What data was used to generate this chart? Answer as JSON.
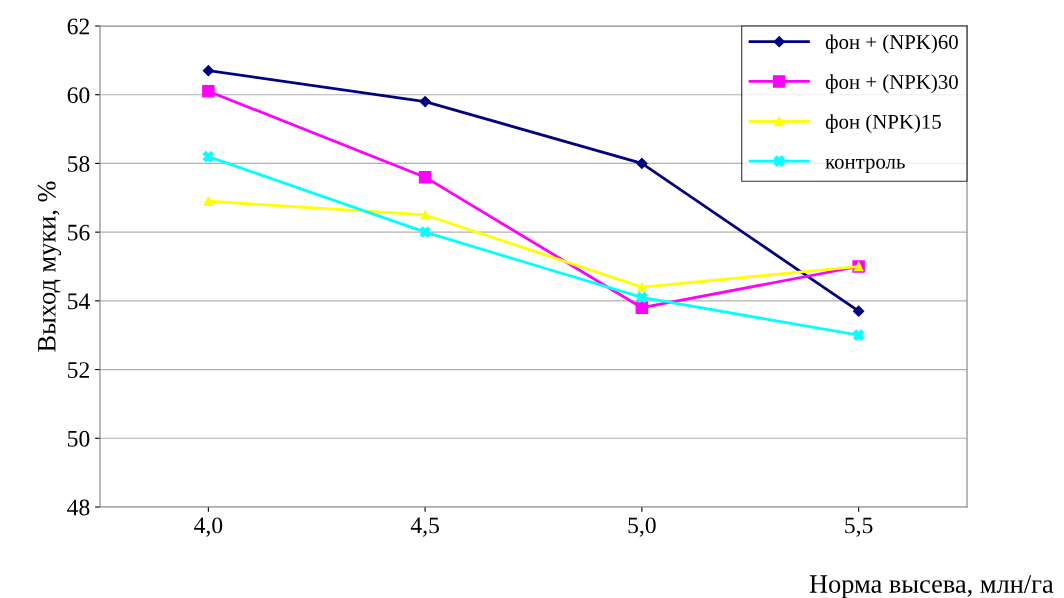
{
  "chart_data": {
    "type": "line",
    "xlabel": "Норма высева, млн/га",
    "ylabel": "Выход муки, %",
    "categories": [
      "4,0",
      "4,5",
      "5,0",
      "5,5"
    ],
    "series": [
      {
        "name": "фон + (NPK)60",
        "color": "#000080",
        "marker": "diamond",
        "values": [
          60.7,
          59.8,
          58.0,
          53.7
        ]
      },
      {
        "name": "фон + (NPK)30",
        "color": "#ff00ff",
        "marker": "square",
        "values": [
          60.1,
          57.6,
          53.8,
          55.0
        ]
      },
      {
        "name": "фон (NPK)15",
        "color": "#ffff00",
        "marker": "triangle",
        "values": [
          56.9,
          56.5,
          54.4,
          55.0
        ]
      },
      {
        "name": "контроль",
        "color": "#00ffff",
        "marker": "cross",
        "values": [
          58.2,
          56.0,
          54.1,
          53.0
        ]
      }
    ],
    "ylim": [
      48,
      62
    ],
    "yticks": [
      48,
      50,
      52,
      54,
      56,
      58,
      60,
      62
    ],
    "grid": "y",
    "legend": "top right"
  }
}
